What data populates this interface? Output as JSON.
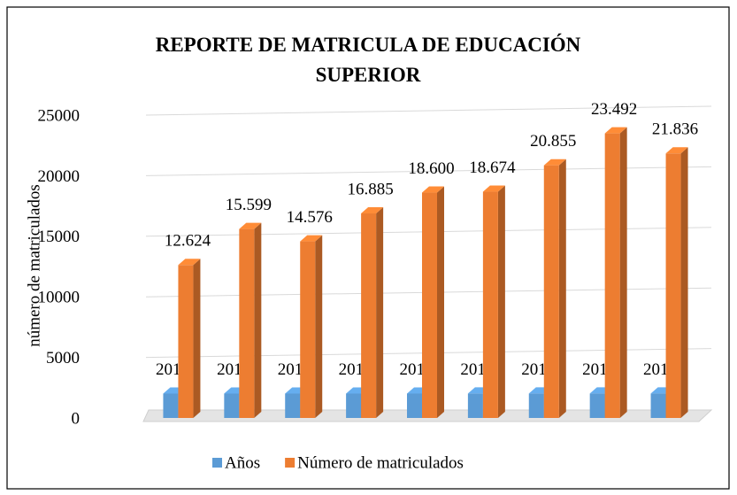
{
  "chart_data": {
    "type": "bar3d",
    "title": "REPORTE DE MATRICULA DE EDUCACIÓN SUPERIOR",
    "y_label": "número de matriculados",
    "categories": [
      null,
      null,
      null,
      null,
      null,
      null,
      null,
      null,
      null
    ],
    "series": [
      {
        "name": "Años",
        "color": "#5b9bd5",
        "values": [
          2010,
          2011,
          2012,
          2013,
          2014,
          2015,
          2016,
          2017,
          2018
        ]
      },
      {
        "name": "Número de matriculados",
        "color": "#ed7d31",
        "values": [
          12624,
          15599,
          14576,
          16885,
          18600,
          18674,
          20855,
          23492,
          21836
        ],
        "value_labels": [
          "12.624",
          "15.599",
          "14.576",
          "16.885",
          "18.600",
          "18.674",
          "20.855",
          "23.492",
          "21.836"
        ]
      }
    ],
    "ylim": [
      0,
      25000
    ],
    "yticks": [
      0,
      5000,
      10000,
      15000,
      20000,
      25000
    ],
    "grid": true,
    "legend": "bottom"
  }
}
